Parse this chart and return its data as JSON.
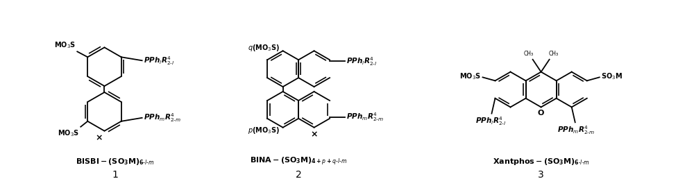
{
  "background_color": "#ffffff",
  "figsize": [
    10.0,
    2.71
  ],
  "dpi": 100,
  "lw": 1.3,
  "label1": "BISBI-(SO$_3$M)$_{6-l-m}$",
  "label2": "BINA-(SO$_3$M)$_{4+p+q-l-m}$",
  "label3": "Xantphos-(SO$_3$M)$_{6-l-m}$",
  "num1": "1",
  "num2": "2",
  "num3": "3"
}
